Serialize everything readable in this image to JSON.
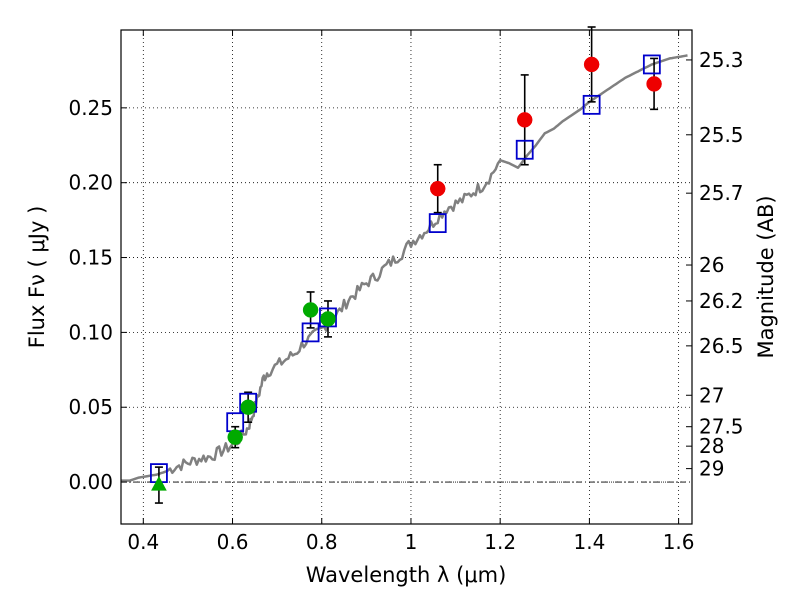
{
  "chart_data": {
    "type": "scatter",
    "xlabel": "Wavelength  λ (μm)",
    "ylabel": "Flux  Fν  ( μJy )",
    "y2label": "Magnitude (AB)",
    "xlim": [
      0.35,
      1.63
    ],
    "ylim": [
      -0.028,
      0.302
    ],
    "grid": true,
    "x_ticks": [
      0.4,
      0.6,
      0.8,
      1.0,
      1.2,
      1.4,
      1.6
    ],
    "x_tick_labels": [
      "0.4",
      "0.6",
      "0.8",
      "1",
      "1.2",
      "1.4",
      "1.6"
    ],
    "y_ticks": [
      0.0,
      0.05,
      0.1,
      0.15,
      0.2,
      0.25
    ],
    "y_tick_labels": [
      "0.00",
      "0.05",
      "0.10",
      "0.15",
      "0.20",
      "0.25"
    ],
    "y2_ticks": [
      {
        "flux": 0.282,
        "label": "25.3"
      },
      {
        "flux": 0.232,
        "label": "25.5"
      },
      {
        "flux": 0.193,
        "label": "25.7"
      },
      {
        "flux": 0.145,
        "label": "26"
      },
      {
        "flux": 0.121,
        "label": "26.2"
      },
      {
        "flux": 0.091,
        "label": "26.5"
      },
      {
        "flux": 0.058,
        "label": "27"
      },
      {
        "flux": 0.037,
        "label": "27.5"
      },
      {
        "flux": 0.024,
        "label": "28"
      },
      {
        "flux": 0.009,
        "label": "29"
      }
    ],
    "model_spectrum": {
      "color": "#808080",
      "x": [
        0.35,
        0.37,
        0.39,
        0.41,
        0.43,
        0.45,
        0.47,
        0.49,
        0.51,
        0.53,
        0.55,
        0.57,
        0.59,
        0.61,
        0.63,
        0.64,
        0.65,
        0.66,
        0.67,
        0.68,
        0.7,
        0.72,
        0.74,
        0.76,
        0.78,
        0.8,
        0.82,
        0.84,
        0.86,
        0.88,
        0.9,
        0.92,
        0.94,
        0.96,
        0.98,
        1.0,
        1.02,
        1.04,
        1.06,
        1.08,
        1.1,
        1.12,
        1.14,
        1.16,
        1.18,
        1.2,
        1.22,
        1.24,
        1.26,
        1.28,
        1.3,
        1.32,
        1.34,
        1.36,
        1.38,
        1.4,
        1.42,
        1.44,
        1.46,
        1.48,
        1.5,
        1.52,
        1.54,
        1.56,
        1.58,
        1.6,
        1.62
      ],
      "y": [
        0.001,
        0.001,
        0.003,
        0.004,
        0.005,
        0.007,
        0.01,
        0.012,
        0.014,
        0.016,
        0.017,
        0.02,
        0.023,
        0.027,
        0.034,
        0.04,
        0.05,
        0.06,
        0.07,
        0.074,
        0.078,
        0.082,
        0.086,
        0.093,
        0.097,
        0.102,
        0.108,
        0.114,
        0.122,
        0.127,
        0.133,
        0.137,
        0.143,
        0.148,
        0.153,
        0.16,
        0.165,
        0.17,
        0.177,
        0.183,
        0.186,
        0.189,
        0.194,
        0.198,
        0.205,
        0.215,
        0.213,
        0.21,
        0.218,
        0.225,
        0.233,
        0.236,
        0.241,
        0.245,
        0.249,
        0.254,
        0.258,
        0.262,
        0.266,
        0.27,
        0.273,
        0.276,
        0.279,
        0.281,
        0.283,
        0.284,
        0.285
      ]
    },
    "synthetic_photometry": {
      "marker": "open-square",
      "color": "#0000cc",
      "x": [
        0.435,
        0.606,
        0.635,
        0.775,
        0.814,
        1.06,
        1.255,
        1.405,
        1.54
      ],
      "y": [
        0.006,
        0.04,
        0.053,
        0.1,
        0.11,
        0.173,
        0.222,
        0.252,
        0.279
      ]
    },
    "hst_optical_points": {
      "marker": "circle",
      "color": "#00aa00",
      "x": [
        0.606,
        0.635,
        0.775,
        0.814
      ],
      "y": [
        0.03,
        0.05,
        0.115,
        0.109
      ],
      "err": [
        0.007,
        0.01,
        0.012,
        0.012
      ]
    },
    "upper_limit_point": {
      "marker": "triangle",
      "color": "#00aa00",
      "x": [
        0.435
      ],
      "y": [
        -0.002
      ],
      "err": [
        0.012
      ]
    },
    "nir_points": {
      "marker": "circle",
      "color": "#ee0000",
      "x": [
        1.06,
        1.255,
        1.405,
        1.545
      ],
      "y": [
        0.196,
        0.242,
        0.279,
        0.266
      ],
      "err": [
        0.016,
        0.03,
        0.025,
        0.017
      ]
    }
  }
}
